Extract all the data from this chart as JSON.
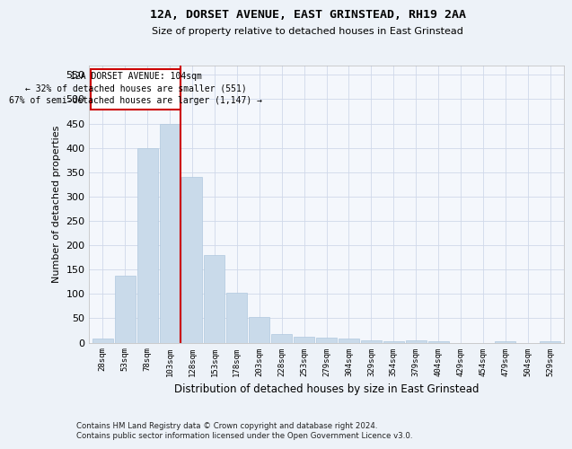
{
  "title": "12A, DORSET AVENUE, EAST GRINSTEAD, RH19 2AA",
  "subtitle": "Size of property relative to detached houses in East Grinstead",
  "xlabel": "Distribution of detached houses by size in East Grinstead",
  "ylabel": "Number of detached properties",
  "footnote1": "Contains HM Land Registry data © Crown copyright and database right 2024.",
  "footnote2": "Contains public sector information licensed under the Open Government Licence v3.0.",
  "annotation_line1": "12A DORSET AVENUE: 104sqm",
  "annotation_line2": "← 32% of detached houses are smaller (551)",
  "annotation_line3": "67% of semi-detached houses are larger (1,147) →",
  "bar_color": "#c9daea",
  "bar_edge_color": "#b0c8de",
  "vline_color": "#cc0000",
  "vline_x_index": 3,
  "categories": [
    "28sqm",
    "53sqm",
    "78sqm",
    "103sqm",
    "128sqm",
    "153sqm",
    "178sqm",
    "203sqm",
    "228sqm",
    "253sqm",
    "279sqm",
    "304sqm",
    "329sqm",
    "354sqm",
    "379sqm",
    "404sqm",
    "429sqm",
    "454sqm",
    "479sqm",
    "504sqm",
    "529sqm"
  ],
  "values": [
    8,
    137,
    400,
    450,
    340,
    180,
    103,
    52,
    17,
    13,
    11,
    8,
    4,
    2,
    4,
    3,
    0,
    0,
    3,
    0,
    3
  ],
  "ylim": [
    0,
    570
  ],
  "yticks": [
    0,
    50,
    100,
    150,
    200,
    250,
    300,
    350,
    400,
    450,
    500,
    550
  ],
  "bg_color": "#edf2f8",
  "plot_bg_color": "#f4f7fc",
  "grid_color": "#d0d8ea",
  "title_fontsize": 9.5,
  "subtitle_fontsize": 8,
  "ylabel_fontsize": 8,
  "xlabel_fontsize": 8.5
}
